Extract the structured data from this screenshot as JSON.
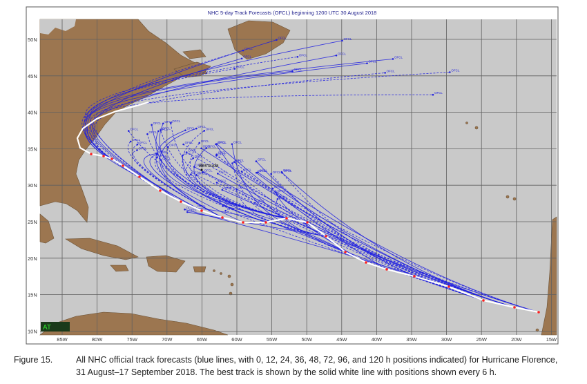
{
  "map": {
    "title": "NHC 5-day Track Forecasts (OFCL)  beginning 1200 UTC 30 August  2018",
    "lat_labels": [
      "50N",
      "45N",
      "40N",
      "35N",
      "30N",
      "25N",
      "20N",
      "15N",
      "10N"
    ],
    "lon_labels": [
      "85W",
      "80W",
      "75W",
      "70W",
      "65W",
      "60W",
      "55W",
      "50W",
      "45W",
      "40W",
      "35W",
      "30W",
      "25W",
      "20W",
      "15W"
    ],
    "place_label": "Bermuda",
    "forecast_label": "OFCL",
    "basin_label": "AT"
  },
  "caption": {
    "label": "Figure 15.",
    "lines": [
      "All NHC official track forecasts (blue lines, with 0, 12, 24, 36, 48, 72, 96, and 120 h positions indicated) for Hurricane Florence,",
      "31 August–17 September 2018.  The best track is shown by the solid white line with positions shown every 6 h."
    ]
  }
}
